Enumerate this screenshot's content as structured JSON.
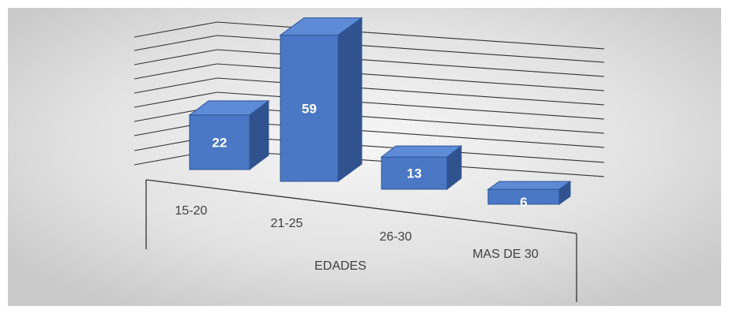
{
  "chart_data": {
    "type": "bar",
    "style": "3d-perspective",
    "categories": [
      "15-20",
      "21-25",
      "26-30",
      "MAS DE 30"
    ],
    "values": [
      22,
      59,
      13,
      6
    ],
    "data_labels": [
      "22",
      "59",
      "13",
      "6"
    ],
    "title": "",
    "xlabel": "EDADES",
    "ylabel": "",
    "ylim": [
      0,
      70
    ],
    "grid": true,
    "legend": "none",
    "colors": {
      "bar_front": "#4a78c4",
      "bar_top": "#5d8bd6",
      "bar_side": "#30538f",
      "bar_edge": "#2f5597",
      "grid": "#333333",
      "background": "#d6d6d6"
    }
  }
}
